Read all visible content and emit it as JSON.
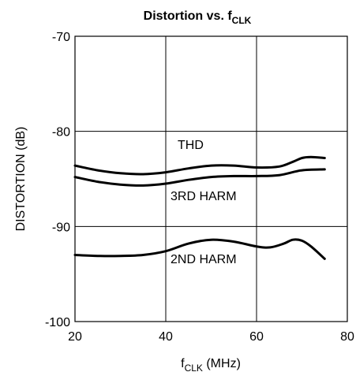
{
  "chart_data": {
    "type": "line",
    "title": "Distortion vs. f",
    "title_sub": "CLK",
    "xlabel": "f",
    "xlabel_sub": "CLK",
    "xlabel_unit": " (MHz)",
    "ylabel": "DISTORTION (dB)",
    "xlim": [
      20,
      80
    ],
    "ylim": [
      -100,
      -70
    ],
    "xticks": [
      20,
      40,
      60,
      80
    ],
    "yticks": [
      -70,
      -80,
      -90,
      -100
    ],
    "grid": true,
    "series": [
      {
        "name": "THD",
        "x": [
          20,
          25,
          30,
          35,
          40,
          45,
          50,
          55,
          60,
          65,
          68,
          70,
          72,
          75
        ],
        "y": [
          -83.6,
          -84.1,
          -84.4,
          -84.5,
          -84.3,
          -83.9,
          -83.6,
          -83.6,
          -83.8,
          -83.7,
          -83.2,
          -82.8,
          -82.7,
          -82.8
        ]
      },
      {
        "name": "3RD HARM",
        "x": [
          20,
          25,
          30,
          35,
          40,
          45,
          50,
          55,
          60,
          65,
          70,
          75
        ],
        "y": [
          -84.8,
          -85.3,
          -85.6,
          -85.7,
          -85.5,
          -85.1,
          -84.8,
          -84.7,
          -84.7,
          -84.6,
          -84.1,
          -84.0
        ]
      },
      {
        "name": "2ND HARM",
        "x": [
          20,
          25,
          30,
          35,
          40,
          45,
          50,
          55,
          60,
          63,
          66,
          68,
          70,
          72,
          75
        ],
        "y": [
          -93.0,
          -93.1,
          -93.1,
          -93.0,
          -92.6,
          -91.8,
          -91.4,
          -91.6,
          -92.1,
          -92.2,
          -91.8,
          -91.4,
          -91.5,
          -92.1,
          -93.4
        ]
      }
    ]
  },
  "labels": {
    "thd": "THD",
    "third": "3RD HARM",
    "second": "2ND HARM"
  }
}
